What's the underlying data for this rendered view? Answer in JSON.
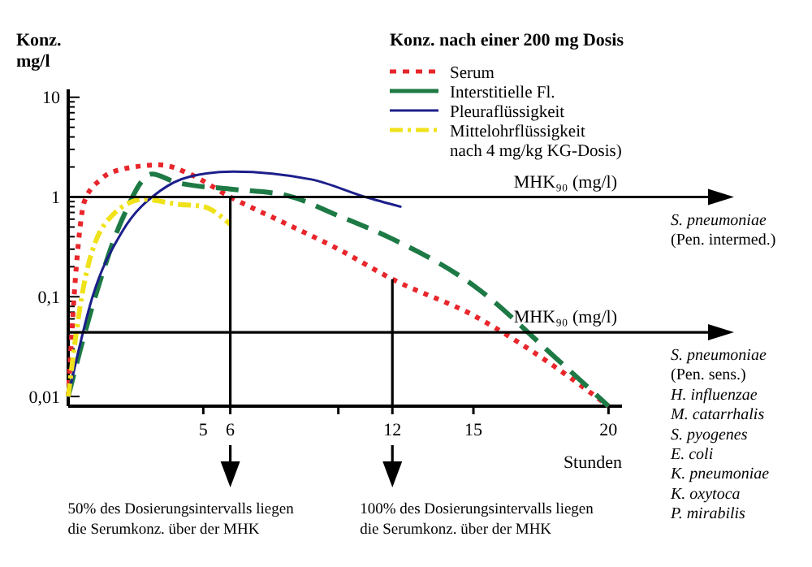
{
  "chart_data": {
    "type": "line",
    "legend_title": "Konz. nach einer 200 mg Dosis",
    "ylabel": "Konz. mg/l",
    "xlabel": "Stunden",
    "log": "y",
    "legend": "top right",
    "xlim": [
      0,
      20.5
    ],
    "ylim": [
      0.008,
      12
    ],
    "xticks": [
      5,
      6,
      {
        "value": 10,
        "label": null
      },
      12,
      15,
      20
    ],
    "yticks": [
      {
        "value": 0.01,
        "label": "0,01"
      },
      {
        "value": 0.02,
        "label": null
      },
      {
        "value": 0.03,
        "label": null
      },
      {
        "value": 0.04,
        "label": null
      },
      {
        "value": 0.05,
        "label": null
      },
      {
        "value": 0.06,
        "label": null
      },
      {
        "value": 0.07,
        "label": null
      },
      {
        "value": 0.08,
        "label": null
      },
      {
        "value": 0.09,
        "label": null
      },
      {
        "value": 0.1,
        "label": "0,1"
      },
      {
        "value": 0.2,
        "label": null
      },
      {
        "value": 0.3,
        "label": null
      },
      {
        "value": 0.4,
        "label": null
      },
      {
        "value": 0.5,
        "label": null
      },
      {
        "value": 0.6,
        "label": null
      },
      {
        "value": 0.7,
        "label": null
      },
      {
        "value": 0.8,
        "label": null
      },
      {
        "value": 0.9,
        "label": null
      },
      1,
      {
        "value": 2,
        "label": null
      },
      {
        "value": 3,
        "label": null
      },
      {
        "value": 4,
        "label": null
      },
      {
        "value": 5,
        "label": null
      },
      {
        "value": 6,
        "label": null
      },
      {
        "value": 7,
        "label": null
      },
      {
        "value": 8,
        "label": null
      },
      {
        "value": 9,
        "label": null
      },
      10
    ],
    "series": [
      {
        "name": "Serum",
        "color": "#e8262b",
        "line_style": "dotted",
        "x": [
          0,
          0.3,
          0.6,
          1.2,
          2,
          3.4,
          4.5,
          6,
          8,
          10,
          12,
          15,
          18,
          20
        ],
        "values": [
          0.01,
          0.2,
          0.9,
          1.5,
          1.9,
          2.1,
          1.7,
          1.0,
          0.55,
          0.3,
          0.15,
          0.065,
          0.02,
          0.008
        ]
      },
      {
        "name": "Interstitielle Fl.",
        "color": "#1e7a45",
        "line_style": "dashed",
        "x": [
          0,
          1,
          2,
          3.1,
          4,
          6,
          8,
          10,
          12,
          15,
          18,
          20
        ],
        "values": [
          0.01,
          0.1,
          0.6,
          1.7,
          1.4,
          1.2,
          1.05,
          0.65,
          0.38,
          0.13,
          0.025,
          0.008
        ]
      },
      {
        "name": "Pleuraflüssigkeit",
        "color": "#1c1f8a",
        "line_style": "solid",
        "x": [
          0,
          0.9,
          2,
          3.4,
          4.5,
          6.1,
          9,
          11,
          12.3
        ],
        "values": [
          0.01,
          0.1,
          0.45,
          1.15,
          1.6,
          1.8,
          1.5,
          1.0,
          0.8
        ]
      },
      {
        "name": "Mittelohrflüssigkeit nach 4 mg/kg KG-Dosis)",
        "color": "#f0e21a",
        "line_style": "dashdot",
        "x": [
          0,
          0.5,
          1.5,
          2.8,
          4,
          5,
          6
        ],
        "values": [
          0.01,
          0.1,
          0.6,
          0.95,
          0.85,
          0.8,
          0.53
        ]
      }
    ],
    "ref_lines": [
      {
        "axis": "y",
        "value": 1,
        "label": "MHK₉₀ (mg/l)"
      },
      {
        "axis": "y",
        "value": 0.044,
        "label": "MHK₉₀ (mg/l)"
      },
      {
        "axis": "x",
        "value": 6
      },
      {
        "axis": "x",
        "value": 12
      }
    ],
    "annotations": [
      "S. pneumoniae\n(Pen. intermed.)",
      "S. pneumoniae\n(Pen. sens.)\nH. influenzae\nM. catarrhalis\nS. pyogenes\nE. coli\nK. pneumoniae\nK. oxytoca\nP. mirabilis",
      "50% des Dosierungsintervalls liegen\ndie Serumkonz. über der MHK",
      "100% des Dosierungsintervalls liegen\ndie Serumkonz. über der MHK"
    ]
  }
}
